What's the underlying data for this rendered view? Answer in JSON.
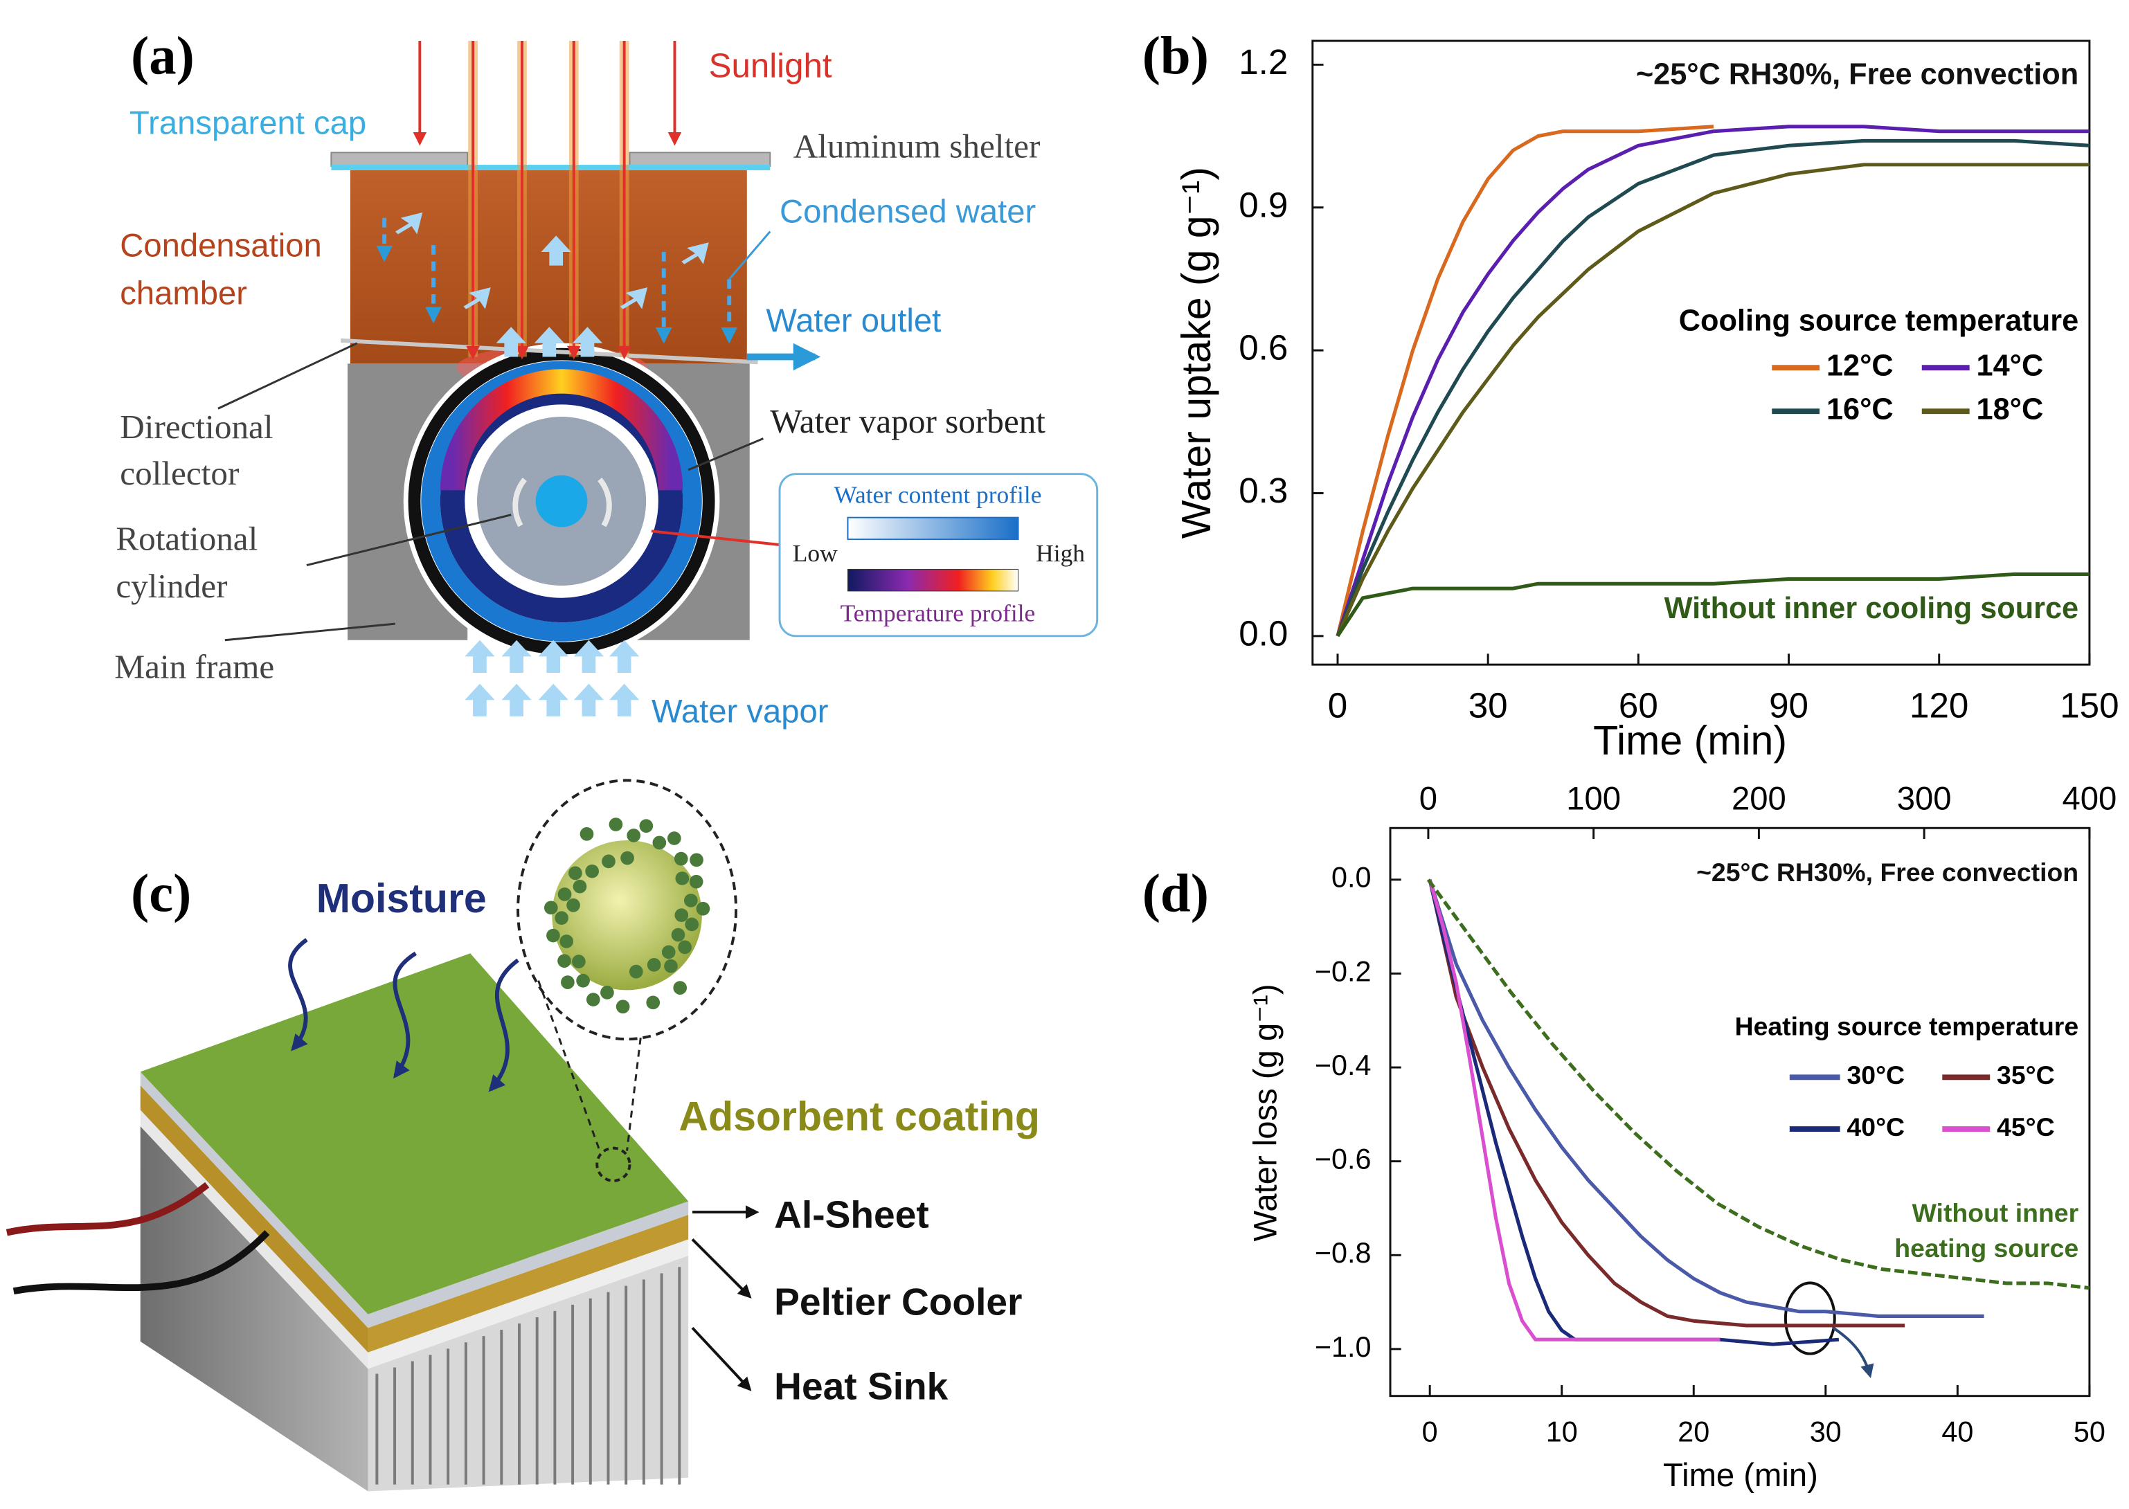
{
  "chart_data": [
    {
      "type": "line",
      "panel": "(b)",
      "xlabel": "Time (min)",
      "ylabel": "Water uptake (g g⁻¹)",
      "x": [
        0,
        5,
        10,
        15,
        20,
        25,
        30,
        35,
        40,
        45,
        50,
        60,
        75,
        90,
        105,
        120,
        135,
        150
      ],
      "xlim": [
        -5,
        150
      ],
      "xticks": [
        0,
        30,
        60,
        90,
        120,
        150
      ],
      "ylim": [
        -0.06,
        1.25
      ],
      "yticks": [
        {
          "value": 0,
          "label": "0.0"
        },
        0.3,
        0.6,
        0.9,
        1.2
      ],
      "legend_title": "Cooling source temperature",
      "annotations": [
        {
          "text": "~25°C RH30%, Free convection"
        },
        {
          "text": "Without inner cooling source",
          "color": "#2f5a17"
        }
      ],
      "series": [
        {
          "name": "12°C",
          "color": "#d9691e",
          "values": [
            0,
            0.22,
            0.42,
            0.6,
            0.75,
            0.87,
            0.96,
            1.02,
            1.05,
            1.06,
            1.06,
            1.06,
            1.07,
            null,
            null,
            null,
            null,
            null
          ]
        },
        {
          "name": "14°C",
          "color": "#5b1fb0",
          "values": [
            0,
            0.16,
            0.32,
            0.46,
            0.58,
            0.68,
            0.76,
            0.83,
            0.89,
            0.94,
            0.98,
            1.03,
            1.06,
            1.07,
            1.07,
            1.06,
            1.06,
            1.06
          ]
        },
        {
          "name": "16°C",
          "color": "#1f4a52",
          "values": [
            0,
            0.14,
            0.26,
            0.37,
            0.47,
            0.56,
            0.64,
            0.71,
            0.77,
            0.83,
            0.88,
            0.95,
            1.01,
            1.03,
            1.04,
            1.04,
            1.04,
            1.03
          ]
        },
        {
          "name": "18°C",
          "color": "#5e5a1a",
          "values": [
            0,
            0.12,
            0.22,
            0.31,
            0.39,
            0.47,
            0.54,
            0.61,
            0.67,
            0.72,
            0.77,
            0.85,
            0.93,
            0.97,
            0.99,
            0.99,
            0.99,
            0.99
          ]
        },
        {
          "color": "#2f5a17",
          "values": [
            0,
            0.08,
            0.09,
            0.1,
            0.1,
            0.1,
            0.1,
            0.1,
            0.11,
            0.11,
            0.11,
            0.11,
            0.11,
            0.12,
            0.12,
            0.12,
            0.13,
            0.13
          ]
        }
      ]
    },
    {
      "type": "line",
      "panel": "(d)",
      "xlabel": "Time (min)",
      "ylabel": "Water loss (g g⁻¹)",
      "xlim": [
        -3,
        50
      ],
      "xticks": [
        0,
        10,
        20,
        30,
        40,
        50
      ],
      "x2lim": [
        -23,
        400
      ],
      "x2ticks": [
        0,
        100,
        200,
        300,
        400
      ],
      "ylim": [
        -1.1,
        0.11
      ],
      "yticks": [
        {
          "value": 0,
          "label": "0.0"
        },
        {
          "value": -0.2,
          "label": "−0.2"
        },
        {
          "value": -0.4,
          "label": "−0.4"
        },
        {
          "value": -0.6,
          "label": "−0.6"
        },
        {
          "value": -0.8,
          "label": "−0.8"
        },
        {
          "value": -1,
          "label": "−1.0"
        }
      ],
      "legend_title": "Heating source temperature",
      "annotations": [
        {
          "text": "~25°C RH30%, Free convection"
        },
        {
          "lines": [
            "Without inner",
            "heating source"
          ],
          "color": "#3c6e1e"
        }
      ],
      "series": [
        {
          "name": "30°C",
          "color": "#4a5aa8",
          "x": [
            0,
            2,
            4,
            6,
            8,
            10,
            12,
            14,
            16,
            18,
            20,
            22,
            24,
            26,
            28,
            30,
            34,
            38,
            42
          ],
          "values": [
            0,
            -0.18,
            -0.3,
            -0.4,
            -0.49,
            -0.57,
            -0.64,
            -0.7,
            -0.76,
            -0.81,
            -0.85,
            -0.88,
            -0.9,
            -0.91,
            -0.92,
            -0.92,
            -0.93,
            -0.93,
            -0.93
          ]
        },
        {
          "name": "35°C",
          "color": "#7a2a2a",
          "x": [
            0,
            2,
            4,
            6,
            8,
            10,
            12,
            14,
            16,
            18,
            20,
            24,
            28,
            32,
            36
          ],
          "values": [
            0,
            -0.25,
            -0.4,
            -0.53,
            -0.64,
            -0.73,
            -0.8,
            -0.86,
            -0.9,
            -0.93,
            -0.94,
            -0.95,
            -0.95,
            -0.95,
            -0.95
          ]
        },
        {
          "name": "40°C",
          "color": "#1a2a78",
          "x": [
            0,
            1,
            2,
            3,
            4,
            5,
            6,
            7,
            8,
            9,
            10,
            11,
            12,
            14,
            18,
            22,
            26,
            31
          ],
          "values": [
            0,
            -0.12,
            -0.23,
            -0.34,
            -0.45,
            -0.56,
            -0.66,
            -0.76,
            -0.85,
            -0.92,
            -0.96,
            -0.98,
            -0.98,
            -0.98,
            -0.98,
            -0.98,
            -0.99,
            -0.98
          ]
        },
        {
          "name": "45°C",
          "color": "#d94fd0",
          "x": [
            0,
            1,
            2,
            3,
            4,
            5,
            6,
            7,
            8,
            9,
            10,
            12,
            14,
            16,
            18,
            20,
            22
          ],
          "values": [
            0,
            -0.1,
            -0.22,
            -0.38,
            -0.55,
            -0.72,
            -0.86,
            -0.94,
            -0.98,
            -0.98,
            -0.98,
            -0.98,
            -0.98,
            -0.98,
            -0.98,
            -0.98,
            -0.98
          ]
        },
        {
          "color": "#3c6e1e",
          "axis": "x2",
          "style": "dashed",
          "x": [
            0,
            25,
            50,
            75,
            100,
            125,
            150,
            175,
            200,
            225,
            250,
            275,
            300,
            325,
            350,
            375,
            400
          ],
          "values": [
            0,
            -0.12,
            -0.24,
            -0.35,
            -0.45,
            -0.54,
            -0.62,
            -0.69,
            -0.74,
            -0.78,
            -0.81,
            -0.83,
            -0.84,
            -0.85,
            -0.86,
            -0.86,
            -0.87
          ]
        }
      ]
    }
  ],
  "diagram_a": {
    "panel": "(a)",
    "sunlight": "Sunlight",
    "transparent_cap": "Transparent cap",
    "aluminum_shelter": "Aluminum shelter",
    "condensed_water": "Condensed water",
    "condensation_chamber": [
      "Condensation",
      "chamber"
    ],
    "water_outlet": "Water outlet",
    "directional_collector": [
      "Directional",
      "collector"
    ],
    "water_vapor_sorbent": "Water vapor sorbent",
    "rotational_cylinder": [
      "Rotational",
      "cylinder"
    ],
    "main_frame": "Main frame",
    "water_content_profile": "Water content profile",
    "low": "Low",
    "high": "High",
    "temperature_profile": "Temperature profile",
    "water_vapor": "Water vapor"
  },
  "diagram_c": {
    "panel": "(c)",
    "moisture": "Moisture",
    "adsorbent_coating": "Adsorbent coating",
    "al_sheet": "Al-Sheet",
    "peltier_cooler": "Peltier Cooler",
    "heat_sink": "Heat Sink"
  }
}
